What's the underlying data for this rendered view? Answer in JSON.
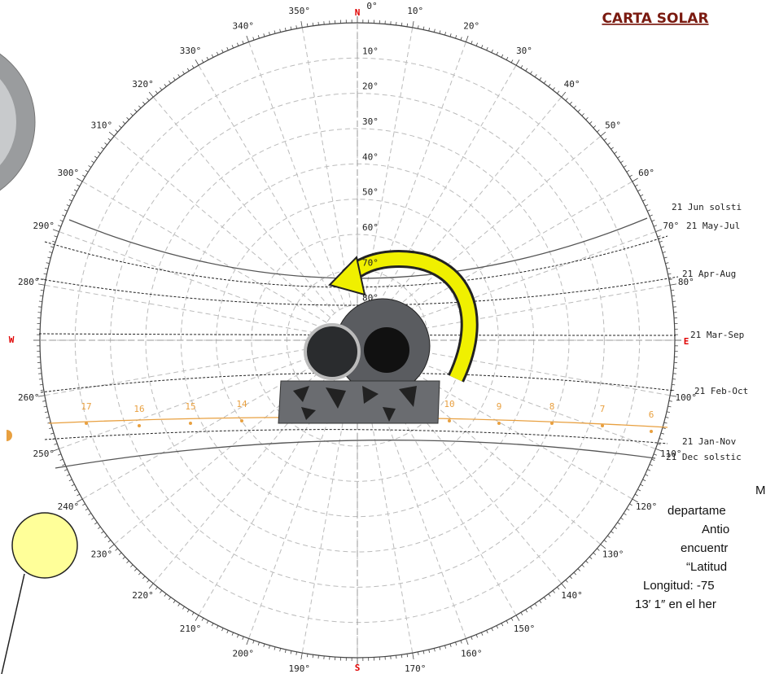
{
  "title": "CARTA SOLAR",
  "cardinals": {
    "north": "N",
    "east": "E",
    "south": "S",
    "west": "W"
  },
  "azimuth_labels": [
    "0°",
    "10°",
    "20°",
    "30°",
    "40°",
    "50°",
    "60°",
    "70°",
    "80°",
    null,
    "100°",
    "110°",
    "120°",
    "130°",
    "140°",
    "150°",
    "160°",
    "170°",
    null,
    "190°",
    "200°",
    "210°",
    "220°",
    "230°",
    "240°",
    "250°",
    "260°",
    null,
    "280°",
    "290°",
    "300°",
    "310°",
    "320°",
    "330°",
    "340°",
    "350°"
  ],
  "altitude_labels": [
    "10°",
    "20°",
    "30°",
    "40°",
    "50°",
    "60°",
    "70°",
    "80°"
  ],
  "date_labels": [
    "21 Jun  solsti",
    "21 May-Jul",
    "21 Apr-Aug",
    "21 Mar-Sep",
    "21 Feb-Oct",
    "21 Jan-Nov",
    "21 Dec  solstic"
  ],
  "hour_labels": [
    "17",
    "16",
    "15",
    "14",
    "10",
    "9",
    "8",
    "7",
    "6"
  ],
  "note_lines": [
    "M",
    "departame",
    "Antio",
    "encuentr",
    "“Latitud",
    "Longitud: -75",
    "13′ 1″ en el her"
  ]
}
